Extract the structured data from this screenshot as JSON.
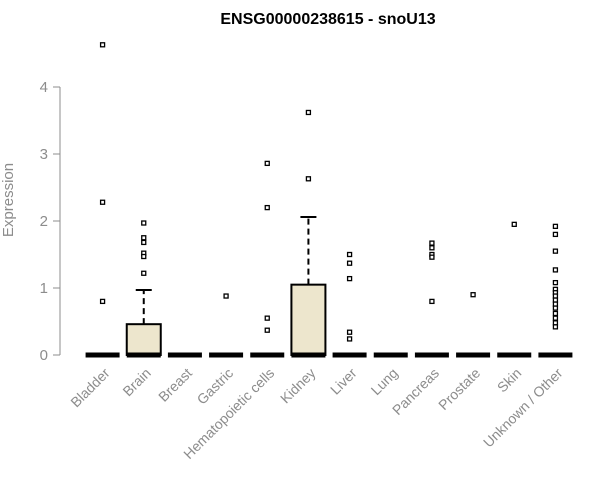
{
  "chart_data": {
    "type": "box",
    "title": "ENSG00000238615 - snoU13",
    "xlabel": "",
    "ylabel": "Expression",
    "ylim": [
      0,
      4.7
    ],
    "yticks": [
      0,
      1,
      2,
      3,
      4
    ],
    "grid": false,
    "box_fill": "#ede6cd",
    "categories": [
      "Bladder",
      "Brain",
      "Breast",
      "Gastric",
      "Hematopoietic cells",
      "Kidney",
      "Liver",
      "Lung",
      "Pancreas",
      "Prostate",
      "Skin",
      "Unknown / Other"
    ],
    "boxes": [
      {
        "q1": 0,
        "median": 0,
        "q3": 0,
        "whisker_low": 0,
        "whisker_high": 0,
        "outliers": [
          4.63,
          2.28,
          0.8
        ]
      },
      {
        "q1": 0,
        "median": 0,
        "q3": 0.46,
        "whisker_low": 0,
        "whisker_high": 0.97,
        "outliers": [
          1.97,
          1.75,
          1.68,
          1.52,
          1.47,
          1.22
        ]
      },
      {
        "q1": 0,
        "median": 0,
        "q3": 0,
        "whisker_low": 0,
        "whisker_high": 0,
        "outliers": []
      },
      {
        "q1": 0,
        "median": 0,
        "q3": 0,
        "whisker_low": 0,
        "whisker_high": 0,
        "outliers": [
          0.88
        ]
      },
      {
        "q1": 0,
        "median": 0,
        "q3": 0,
        "whisker_low": 0,
        "whisker_high": 0,
        "outliers": [
          2.86,
          2.2,
          0.55,
          0.37
        ]
      },
      {
        "q1": 0,
        "median": 0,
        "q3": 1.05,
        "whisker_low": 0,
        "whisker_high": 2.06,
        "outliers": [
          3.62,
          2.63
        ]
      },
      {
        "q1": 0,
        "median": 0,
        "q3": 0,
        "whisker_low": 0,
        "whisker_high": 0,
        "outliers": [
          1.5,
          1.37,
          1.14,
          0.34,
          0.24
        ]
      },
      {
        "q1": 0,
        "median": 0,
        "q3": 0,
        "whisker_low": 0,
        "whisker_high": 0,
        "outliers": []
      },
      {
        "q1": 0,
        "median": 0,
        "q3": 0,
        "whisker_low": 0,
        "whisker_high": 0,
        "outliers": [
          1.67,
          1.6,
          1.5,
          1.46,
          0.8
        ]
      },
      {
        "q1": 0,
        "median": 0,
        "q3": 0,
        "whisker_low": 0,
        "whisker_high": 0,
        "outliers": [
          0.9
        ]
      },
      {
        "q1": 0,
        "median": 0,
        "q3": 0,
        "whisker_low": 0,
        "whisker_high": 0,
        "outliers": [
          1.95
        ]
      },
      {
        "q1": 0,
        "median": 0,
        "q3": 0,
        "whisker_low": 0,
        "whisker_high": 0,
        "outliers": [
          1.92,
          1.8,
          1.55,
          1.27,
          1.08,
          0.98,
          0.93,
          0.88,
          0.82,
          0.76,
          0.7,
          0.62,
          0.55,
          0.48,
          0.42
        ]
      }
    ]
  }
}
